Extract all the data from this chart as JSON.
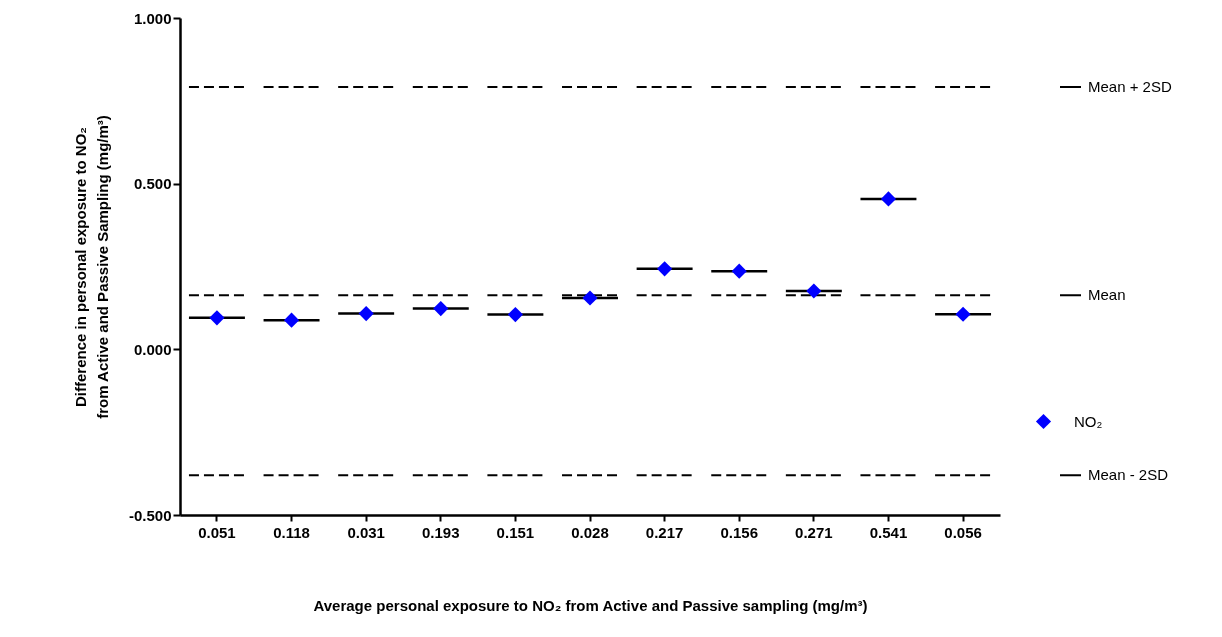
{
  "chart_data": {
    "type": "scatter",
    "xlabel": "Average personal exposure to NO₂ from Active and Passive sampling (mg/m³)",
    "ylabel": "Difference in personal exposure to NO₂\nfrom  Active and Passive Sampling (mg/m³)",
    "categories": [
      "0.051",
      "0.118",
      "0.031",
      "0.193",
      "0.151",
      "0.028",
      "0.217",
      "0.156",
      "0.271",
      "0.541",
      "0.056"
    ],
    "series": [
      {
        "name": "NO₂",
        "color": "#0000ff",
        "values": [
          0.095,
          0.088,
          0.108,
          0.123,
          0.105,
          0.155,
          0.243,
          0.236,
          0.176,
          0.454,
          0.106
        ]
      }
    ],
    "ref_lines": [
      {
        "axis": "y",
        "value": 0.792,
        "label": "Mean + 2SD",
        "line_style": "dashed",
        "color": "#000000"
      },
      {
        "axis": "y",
        "value": 0.163,
        "label": "Mean",
        "line_style": "dashed",
        "color": "#000000"
      },
      {
        "axis": "y",
        "value": -0.38,
        "label": "Mean - 2SD",
        "line_style": "dashed",
        "color": "#000000"
      }
    ],
    "marker": "diamond",
    "legend": "right",
    "grid": false,
    "ylim": [
      -0.5,
      1.0
    ],
    "yticks": [
      {
        "value": -0.5,
        "label": "-0.500"
      },
      {
        "value": 0,
        "label": "0.000"
      },
      {
        "value": 0.5,
        "label": "0.500"
      },
      {
        "value": 1.0,
        "label": "1.000"
      }
    ]
  }
}
